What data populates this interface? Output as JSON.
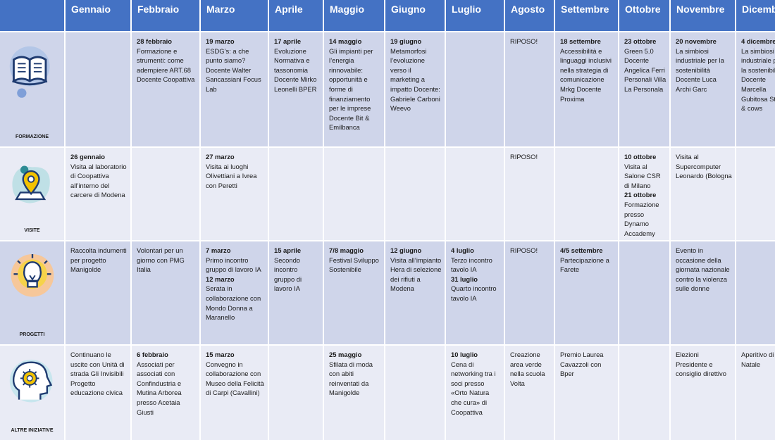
{
  "months": [
    "Gennaio",
    "Febbraio",
    "Marzo",
    "Aprile",
    "Maggio",
    "Giugno",
    "Luglio",
    "Agosto",
    "Settembre",
    "Ottobre",
    "Novembre",
    "Dicembre"
  ],
  "rows": [
    {
      "label": "FORMAZIONE",
      "icon": "open-book-icon",
      "cells": [
        [],
        [
          {
            "b": "28 febbraio"
          },
          {
            "t": "Formazione e strumenti: come adempiere ART.68 Docente Coopattiva"
          }
        ],
        [
          {
            "b": "19 marzo"
          },
          {
            "t": "ESDG’s: a che punto siamo? Docente Walter Sancassiani Focus Lab"
          }
        ],
        [
          {
            "b": "17 aprile"
          },
          {
            "t": "Evoluzione Normativa e tassonomia Docente Mirko Leonelli BPER"
          }
        ],
        [
          {
            "b": "14 maggio"
          },
          {
            "t": "Gli impianti per l’energia rinnovabile: opportunità e forme di finanziamento per le imprese Docente Bit & Emilbanca"
          }
        ],
        [
          {
            "b": "19 giugno"
          },
          {
            "t": "Metamorfosi l’evoluzione verso il marketing a impatto Docente: Gabriele Carboni Weevo"
          }
        ],
        [],
        [
          {
            "t": "RIPOSO!"
          }
        ],
        [
          {
            "b": "18 settembre"
          },
          {
            "t": "Accessibilità e linguaggi inclusivi nella strategia di comunicazione Mrkg Docente Proxima"
          }
        ],
        [
          {
            "b": "23 ottobre"
          },
          {
            "t": "Green 5.0 Docente Angelica Ferri Personali Villa La Personala"
          }
        ],
        [
          {
            "b": "20 novembre"
          },
          {
            "t": "La simbiosi industriale per la sostenibilità Docente Luca Archi Garc"
          }
        ],
        [
          {
            "b": "4 dicembre"
          },
          {
            "t": "La simbiosi industriale per la sostenibilità Docente Marcella Gubitosa Stars & cows"
          }
        ]
      ]
    },
    {
      "label": "VISITE",
      "icon": "location-pin-icon",
      "cells": [
        [
          {
            "b": "26 gennaio"
          },
          {
            "t": "Visita al laboratorio di Coopattiva all’interno del carcere di Modena"
          }
        ],
        [],
        [
          {
            "b": "27 marzo"
          },
          {
            "t": "Visita ai luoghi Olivettiani a Ivrea con Peretti"
          }
        ],
        [],
        [],
        [],
        [],
        [
          {
            "t": "RIPOSO!"
          }
        ],
        [],
        [
          {
            "b": "10 ottobre"
          },
          {
            "t": "Visita al Salone CSR di Milano"
          },
          {
            "b": "21 ottobre"
          },
          {
            "t": "Formazione presso Dynamo Accademy"
          }
        ],
        [
          {
            "t": "Visita al Supercomputer Leonardo (Bologna"
          }
        ],
        []
      ]
    },
    {
      "label": "PROGETTI",
      "icon": "lightbulb-icon",
      "cells": [
        [
          {
            "t": "Raccolta indumenti per progetto Manigolde"
          }
        ],
        [
          {
            "t": "Volontari per un giorno con PMG Italia"
          }
        ],
        [
          {
            "b": "7 marzo"
          },
          {
            "t": "Primo incontro gruppo di lavoro IA"
          },
          {
            "b": "12 marzo"
          },
          {
            "t": "Serata in collaborazione con Mondo Donna a Maranello"
          }
        ],
        [
          {
            "b": "15 aprile"
          },
          {
            "t": "Secondo incontro gruppo di lavoro IA"
          }
        ],
        [
          {
            "b": "7/8 maggio"
          },
          {
            "t": "Festival Sviluppo Sostenibile"
          }
        ],
        [
          {
            "b": "12 giugno"
          },
          {
            "t": "Visita all’impianto Hera di selezione dei rifiuti a Modena"
          }
        ],
        [
          {
            "b": "4 luglio"
          },
          {
            "t": "Terzo incontro tavolo IA"
          },
          {
            "b": "31 luglio"
          },
          {
            "t": "Quarto incontro tavolo IA"
          }
        ],
        [
          {
            "t": "RIPOSO!"
          }
        ],
        [
          {
            "b": "4/5 settembre"
          },
          {
            "t": "Partecipazione a Farete"
          }
        ],
        [],
        [
          {
            "t": "Evento in occasione della giornata nazionale contro la violenza sulle donne"
          }
        ],
        []
      ]
    },
    {
      "label": "ALTRE INIZIATIVE",
      "icon": "head-gear-icon",
      "cells": [
        [
          {
            "t": "Continuano le uscite con Unità di strada Gli Invisibili"
          },
          {
            "t": " "
          },
          {
            "t": "Progetto educazione civica"
          }
        ],
        [
          {
            "b": "6 febbraio"
          },
          {
            "t": "Associati per associati con Confindustria e Mutina Arborea presso Acetaia Giusti"
          }
        ],
        [
          {
            "b": "15 marzo"
          },
          {
            "t": "Convegno in collaborazione con Museo della Felicità di Carpi (Cavallini)"
          }
        ],
        [],
        [
          {
            "b": "25 maggio"
          },
          {
            "t": "Sfilata di moda con abiti reinventati da Manigolde"
          }
        ],
        [],
        [
          {
            "b": "10 luglio"
          },
          {
            "t": "Cena di networking tra i soci presso «Orto Natura che cura» di Coopattiva"
          }
        ],
        [
          {
            "t": "Creazione area verde nella scuola Volta"
          }
        ],
        [
          {
            "t": "Premio Laurea Cavazzoli con Bper"
          }
        ],
        [],
        [
          {
            "t": "Elezioni Presidente e consiglio direttivo"
          }
        ],
        [
          {
            "t": "Aperitivo di Natale"
          }
        ]
      ]
    }
  ]
}
